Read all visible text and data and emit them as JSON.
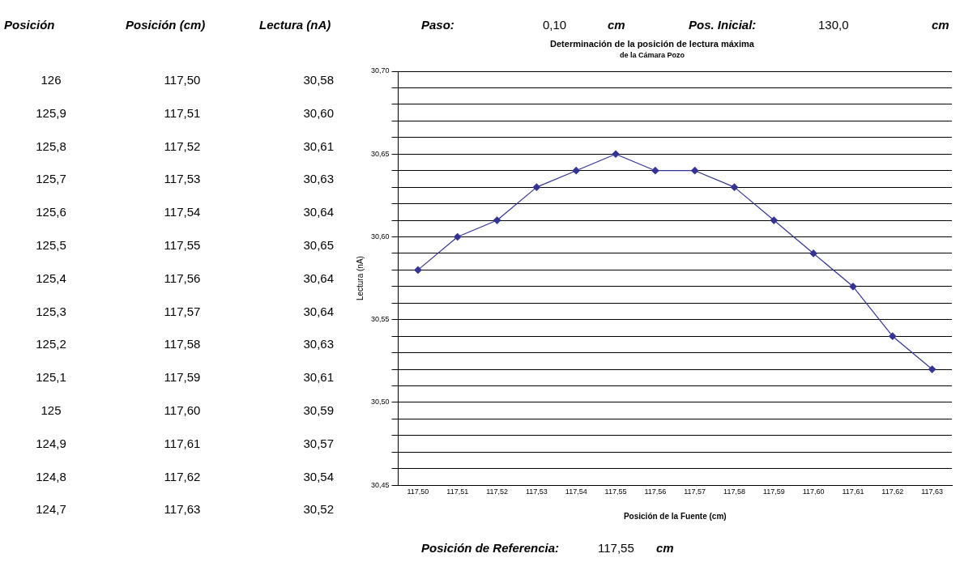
{
  "chart_data": {
    "type": "line",
    "title": "Determinación de la posición de lectura máxima",
    "subtitle": "de la Cámara Pozo",
    "xlabel": "Posición de la Fuente (cm)",
    "ylabel": "Lectura (nA)",
    "categories": [
      "117,50",
      "117,51",
      "117,52",
      "117,53",
      "117,54",
      "117,55",
      "117,56",
      "117,57",
      "117,58",
      "117,59",
      "117,60",
      "117,61",
      "117,62",
      "117,63"
    ],
    "series": [
      {
        "color": "#333399",
        "values": [
          30.58,
          30.6,
          30.61,
          30.63,
          30.64,
          30.65,
          30.64,
          30.64,
          30.63,
          30.61,
          30.59,
          30.57,
          30.54,
          30.52
        ]
      }
    ],
    "ylim": [
      30.45,
      30.7
    ],
    "yticks": [
      {
        "value": 30.45,
        "label": "30,45"
      },
      {
        "value": 30.46,
        "label": null
      },
      {
        "value": 30.47,
        "label": null
      },
      {
        "value": 30.48,
        "label": null
      },
      {
        "value": 30.49,
        "label": null
      },
      {
        "value": 30.5,
        "label": "30,50"
      },
      {
        "value": 30.51,
        "label": null
      },
      {
        "value": 30.52,
        "label": null
      },
      {
        "value": 30.53,
        "label": null
      },
      {
        "value": 30.54,
        "label": null
      },
      {
        "value": 30.55,
        "label": "30,55"
      },
      {
        "value": 30.56,
        "label": null
      },
      {
        "value": 30.57,
        "label": null
      },
      {
        "value": 30.58,
        "label": null
      },
      {
        "value": 30.59,
        "label": null
      },
      {
        "value": 30.6,
        "label": "30,60"
      },
      {
        "value": 30.61,
        "label": null
      },
      {
        "value": 30.62,
        "label": null
      },
      {
        "value": 30.63,
        "label": null
      },
      {
        "value": 30.64,
        "label": null
      },
      {
        "value": 30.65,
        "label": "30,65"
      },
      {
        "value": 30.66,
        "label": null
      },
      {
        "value": 30.67,
        "label": null
      },
      {
        "value": 30.68,
        "label": null
      },
      {
        "value": 30.69,
        "label": null
      },
      {
        "value": 30.7,
        "label": "30,70"
      }
    ],
    "grid": "y",
    "marker": "diamond",
    "line_style": "solid",
    "legend": false,
    "annotations": [
      "Posición",
      "Posición (cm)",
      "Lectura (nA)",
      "126",
      "125,9",
      "125,8",
      "125,7",
      "125,6",
      "125,5",
      "125,4",
      "125,3",
      "125,2",
      "125,1",
      "125",
      "124,9",
      "124,8",
      "124,7",
      "30,58",
      "30,60",
      "30,61",
      "30,63",
      "30,64",
      "30,65",
      "30,64",
      "30,64",
      "30,63",
      "30,61",
      "30,59",
      "30,57",
      "30,54",
      "30,52",
      "Paso:",
      "0,10",
      "cm",
      "Pos. Inicial:",
      "130,0",
      "cm",
      "Posición de Referencia:",
      "117,55",
      "cm"
    ]
  }
}
